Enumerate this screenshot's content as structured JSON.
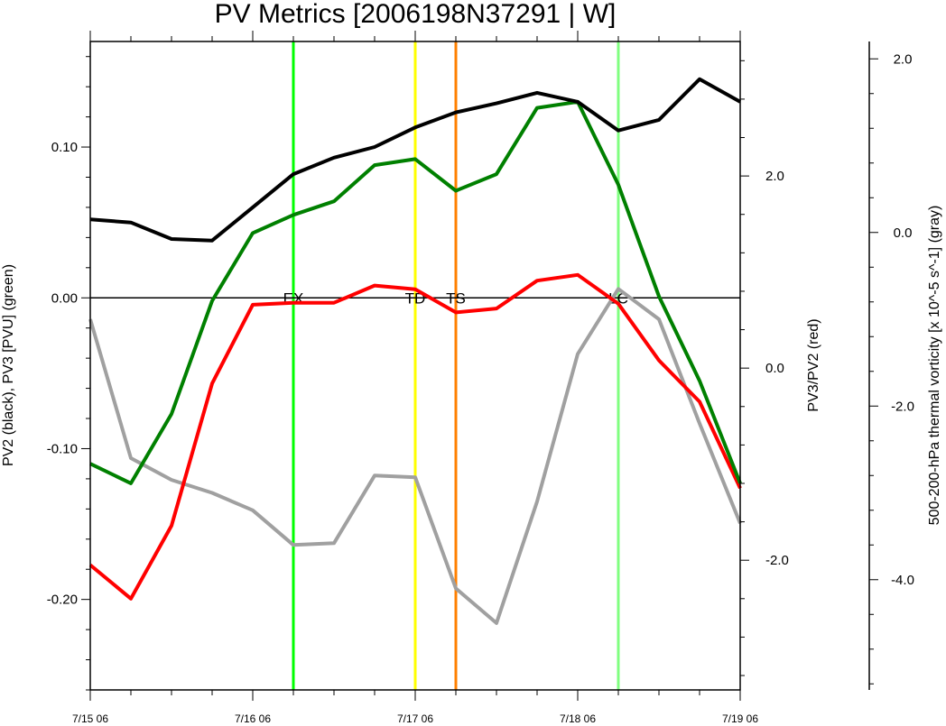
{
  "chart_data": {
    "type": "line",
    "title": "PV Metrics [2006198N37291 | W]",
    "x": [
      "7/15 06",
      "7/15 12",
      "7/15 18",
      "7/16 00",
      "7/16 06",
      "7/16 12",
      "7/16 18",
      "7/17 00",
      "7/17 06",
      "7/17 12",
      "7/17 18",
      "7/18 00",
      "7/18 06",
      "7/18 12",
      "7/18 18",
      "7/19 00",
      "7/19 06"
    ],
    "x_tick_labels": [
      "7/15 06",
      "7/16 06",
      "7/17 06",
      "7/18 06",
      "7/19 06"
    ],
    "left_axis": {
      "label": "PV2 (black), PV3 [PVU] (green)",
      "range": [
        -0.26,
        0.17
      ],
      "tick_labels": [
        "0.10",
        "0.00",
        "-0.10",
        "-0.20"
      ],
      "tick_values": [
        0.1,
        0.0,
        -0.1,
        -0.2
      ]
    },
    "middle_axis": {
      "label": "PV3/PV2 (red)",
      "range": [
        -3.35,
        3.4
      ],
      "tick_labels": [
        "2.0",
        "0.0",
        "-2.0"
      ],
      "tick_values": [
        2.0,
        0.0,
        -2.0
      ]
    },
    "right_axis": {
      "label": "500-200-hPa thermal vorticity [x 10^-5 s^-1] (gray)",
      "range": [
        -5.27,
        2.2
      ],
      "tick_labels": [
        "2.0",
        "0.0",
        "-2.0",
        "-4.0"
      ],
      "tick_values": [
        2.0,
        0.0,
        -2.0,
        -4.0
      ]
    },
    "zero_line": 0.0,
    "series": [
      {
        "color": "#000000",
        "axis": "left",
        "values": [
          0.052,
          0.05,
          0.039,
          0.038,
          0.06,
          0.082,
          0.093,
          0.1,
          0.113,
          0.123,
          0.129,
          0.136,
          0.13,
          0.111,
          0.118,
          0.145,
          0.13
        ]
      },
      {
        "color": "#008000",
        "axis": "left",
        "values": [
          -0.11,
          -0.123,
          -0.077,
          -0.002,
          0.043,
          0.055,
          0.064,
          0.088,
          0.092,
          0.071,
          0.082,
          0.126,
          0.13,
          0.075,
          0.001,
          -0.055,
          -0.123
        ]
      },
      {
        "color": "#ff0000",
        "axis": "middle",
        "values": [
          -2.05,
          -2.4,
          -1.64,
          -0.16,
          0.66,
          0.68,
          0.68,
          0.86,
          0.82,
          0.58,
          0.62,
          0.91,
          0.97,
          0.67,
          0.08,
          -0.35,
          -1.25
        ]
      },
      {
        "color": "#a0a0a0",
        "axis": "right",
        "values": [
          -1.0,
          -2.6,
          -2.85,
          -3.0,
          -3.2,
          -3.6,
          -3.58,
          -2.8,
          -2.82,
          -4.1,
          -4.5,
          -3.1,
          -1.4,
          -0.65,
          -1.0,
          -2.2,
          -3.35
        ]
      }
    ],
    "events": [
      {
        "label": "EX",
        "x": "7/16 12",
        "color": "#00ff00"
      },
      {
        "label": "TD",
        "x": "7/17 06",
        "color": "#ffff00"
      },
      {
        "label": "TS",
        "x": "7/17 12",
        "color": "#ff8000"
      },
      {
        "label": "LC",
        "x": "7/18 12",
        "color": "#80ff80"
      }
    ]
  }
}
